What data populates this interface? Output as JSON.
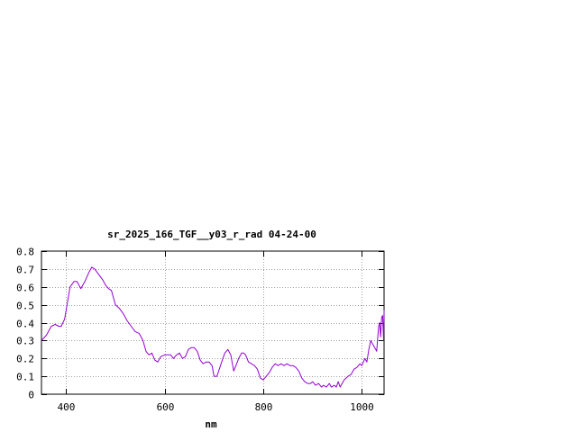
{
  "chart_data": {
    "type": "line",
    "title": "sr_2025_166_TGF__y03_r_rad 04-24-00",
    "xlabel": "nm",
    "ylabel": "",
    "xlim": [
      350,
      1045
    ],
    "ylim": [
      0,
      0.8
    ],
    "x_ticks": [
      400,
      600,
      800,
      1000
    ],
    "x_tick_labels": [
      "400",
      "600",
      "800",
      "1000"
    ],
    "y_ticks": [
      0,
      0.1,
      0.2,
      0.3,
      0.4,
      0.5,
      0.6,
      0.7,
      0.8
    ],
    "y_tick_labels": [
      "0",
      "0.1",
      "0.2",
      "0.3",
      "0.4",
      "0.5",
      "0.6",
      "0.7",
      "0.8"
    ],
    "grid": true,
    "legend": "none",
    "series": [
      {
        "color": "#9400d3",
        "x": [
          350,
          360,
          370,
          378,
          385,
          390,
          397,
          402,
          408,
          416,
          422,
          430,
          438,
          446,
          452,
          458,
          466,
          474,
          480,
          486,
          492,
          500,
          508,
          516,
          524,
          532,
          540,
          548,
          556,
          562,
          568,
          574,
          580,
          586,
          592,
          600,
          606,
          612,
          618,
          624,
          630,
          636,
          642,
          648,
          654,
          660,
          666,
          672,
          678,
          684,
          690,
          696,
          700,
          706,
          712,
          718,
          722,
          728,
          734,
          740,
          746,
          750,
          756,
          760,
          764,
          770,
          776,
          782,
          788,
          794,
          800,
          806,
          812,
          818,
          824,
          830,
          836,
          842,
          848,
          854,
          860,
          866,
          872,
          878,
          884,
          890,
          896,
          900,
          906,
          912,
          918,
          922,
          928,
          934,
          938,
          944,
          948,
          952,
          956,
          960,
          964,
          968,
          972,
          978,
          984,
          990,
          996,
          1000,
          1006,
          1010,
          1014,
          1018,
          1022,
          1026,
          1030,
          1034,
          1036,
          1038,
          1040,
          1042,
          1044,
          1045
        ],
        "y": [
          0.3,
          0.33,
          0.38,
          0.39,
          0.38,
          0.38,
          0.42,
          0.5,
          0.6,
          0.63,
          0.63,
          0.59,
          0.63,
          0.68,
          0.71,
          0.7,
          0.67,
          0.64,
          0.61,
          0.59,
          0.58,
          0.5,
          0.48,
          0.45,
          0.41,
          0.38,
          0.35,
          0.34,
          0.3,
          0.24,
          0.22,
          0.23,
          0.19,
          0.18,
          0.21,
          0.22,
          0.22,
          0.22,
          0.2,
          0.22,
          0.23,
          0.2,
          0.21,
          0.25,
          0.26,
          0.26,
          0.24,
          0.19,
          0.17,
          0.18,
          0.18,
          0.16,
          0.1,
          0.1,
          0.15,
          0.2,
          0.23,
          0.25,
          0.22,
          0.13,
          0.17,
          0.2,
          0.23,
          0.23,
          0.22,
          0.18,
          0.17,
          0.16,
          0.14,
          0.09,
          0.08,
          0.1,
          0.12,
          0.15,
          0.17,
          0.16,
          0.17,
          0.16,
          0.17,
          0.16,
          0.16,
          0.15,
          0.13,
          0.09,
          0.07,
          0.06,
          0.06,
          0.07,
          0.05,
          0.06,
          0.04,
          0.05,
          0.04,
          0.06,
          0.04,
          0.05,
          0.04,
          0.07,
          0.04,
          0.06,
          0.08,
          0.09,
          0.1,
          0.11,
          0.14,
          0.15,
          0.17,
          0.16,
          0.2,
          0.18,
          0.25,
          0.3,
          0.28,
          0.26,
          0.24,
          0.38,
          0.4,
          0.32,
          0.43,
          0.44,
          0.3,
          0.47
        ]
      }
    ]
  }
}
